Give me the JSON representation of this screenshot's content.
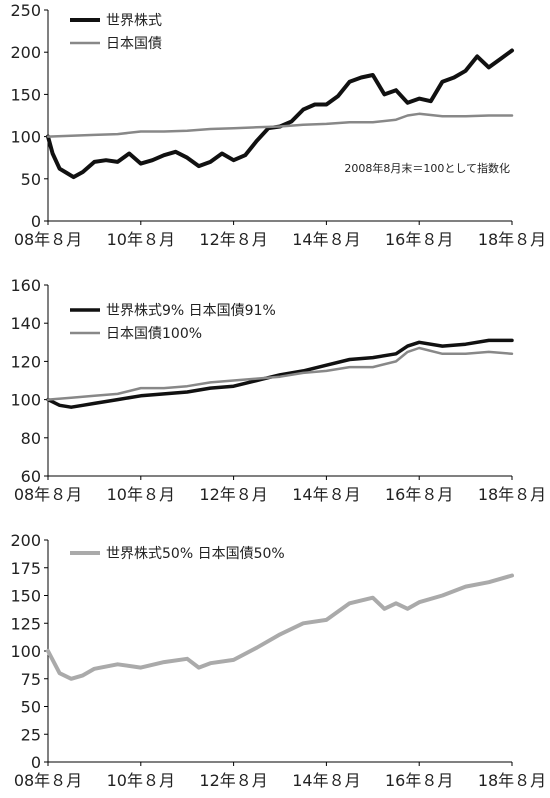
{
  "chart_data": [
    {
      "type": "line",
      "x_ticks": [
        "08年８月",
        "10年８月",
        "12年８月",
        "14年８月",
        "16年８月",
        "18年８月"
      ],
      "ylim": [
        0,
        250
      ],
      "y_ticks": [
        0,
        50,
        100,
        150,
        200,
        250
      ],
      "grid": false,
      "legend": "top-left",
      "annotation": "2008年8月末＝100として指数化",
      "series": [
        {
          "name": "世界株式",
          "color": "#111111",
          "x": [
            0,
            0.1,
            0.25,
            0.4,
            0.55,
            0.75,
            1.0,
            1.25,
            1.5,
            1.75,
            2.0,
            2.25,
            2.5,
            2.75,
            3.0,
            3.25,
            3.5,
            3.75,
            4.0,
            4.25,
            4.5,
            4.75,
            5.0,
            5.25,
            5.5,
            5.75,
            6.0,
            6.25,
            6.5,
            6.75,
            7.0,
            7.25,
            7.5,
            7.75,
            8.0,
            8.25,
            8.5,
            8.75,
            9.0,
            9.25,
            9.5,
            9.75,
            10.0
          ],
          "values": [
            100,
            80,
            62,
            57,
            52,
            58,
            70,
            72,
            70,
            80,
            68,
            72,
            78,
            82,
            75,
            65,
            70,
            80,
            72,
            78,
            95,
            110,
            112,
            118,
            132,
            138,
            138,
            148,
            165,
            170,
            173,
            150,
            155,
            140,
            145,
            142,
            165,
            170,
            178,
            195,
            182,
            192,
            202
          ]
        },
        {
          "name": "日本国債",
          "color": "#888888",
          "x": [
            0,
            0.5,
            1.0,
            1.5,
            2.0,
            2.5,
            3.0,
            3.5,
            4.0,
            4.5,
            5.0,
            5.5,
            6.0,
            6.5,
            7.0,
            7.5,
            7.75,
            8.0,
            8.5,
            9.0,
            9.5,
            10.0
          ],
          "values": [
            100,
            101,
            102,
            103,
            106,
            106,
            107,
            109,
            110,
            111,
            112,
            114,
            115,
            117,
            117,
            120,
            125,
            127,
            124,
            124,
            125,
            125
          ]
        }
      ]
    },
    {
      "type": "line",
      "x_ticks": [
        "08年８月",
        "10年８月",
        "12年８月",
        "14年８月",
        "16年８月",
        "18年８月"
      ],
      "ylim": [
        60,
        160
      ],
      "y_ticks": [
        60,
        80,
        100,
        120,
        140,
        160
      ],
      "grid": false,
      "legend": "top-left",
      "series": [
        {
          "name": "世界株式9% 日本国債91%",
          "color": "#111111",
          "x": [
            0,
            0.25,
            0.5,
            0.75,
            1.0,
            1.5,
            2.0,
            2.5,
            3.0,
            3.5,
            4.0,
            4.5,
            5.0,
            5.5,
            6.0,
            6.5,
            7.0,
            7.5,
            7.75,
            8.0,
            8.5,
            9.0,
            9.5,
            10.0
          ],
          "values": [
            100,
            97,
            96,
            97,
            98,
            100,
            102,
            103,
            104,
            106,
            107,
            110,
            113,
            115,
            118,
            121,
            122,
            124,
            128,
            130,
            128,
            129,
            131,
            131
          ]
        },
        {
          "name": "日本国債100%",
          "color": "#888888",
          "x": [
            0,
            0.5,
            1.0,
            1.5,
            2.0,
            2.5,
            3.0,
            3.5,
            4.0,
            4.5,
            5.0,
            5.5,
            6.0,
            6.5,
            7.0,
            7.5,
            7.75,
            8.0,
            8.5,
            9.0,
            9.5,
            10.0
          ],
          "values": [
            100,
            101,
            102,
            103,
            106,
            106,
            107,
            109,
            110,
            111,
            112,
            114,
            115,
            117,
            117,
            120,
            125,
            127,
            124,
            124,
            125,
            124
          ]
        }
      ]
    },
    {
      "type": "line",
      "x_ticks": [
        "08年８月",
        "10年８月",
        "12年８月",
        "14年８月",
        "16年８月",
        "18年８月"
      ],
      "ylim": [
        0,
        200
      ],
      "y_ticks": [
        0,
        25,
        50,
        75,
        100,
        125,
        150,
        175,
        200
      ],
      "grid": false,
      "legend": "top-left",
      "series": [
        {
          "name": "世界株式50% 日本国債50%",
          "color": "#aaaaaa",
          "x": [
            0,
            0.25,
            0.5,
            0.75,
            1.0,
            1.5,
            2.0,
            2.5,
            3.0,
            3.25,
            3.5,
            4.0,
            4.5,
            5.0,
            5.5,
            6.0,
            6.5,
            7.0,
            7.25,
            7.5,
            7.75,
            8.0,
            8.5,
            9.0,
            9.5,
            10.0
          ],
          "values": [
            100,
            80,
            75,
            78,
            84,
            88,
            85,
            90,
            93,
            85,
            89,
            92,
            103,
            115,
            125,
            128,
            143,
            148,
            138,
            143,
            138,
            144,
            150,
            158,
            162,
            168
          ]
        }
      ]
    }
  ]
}
